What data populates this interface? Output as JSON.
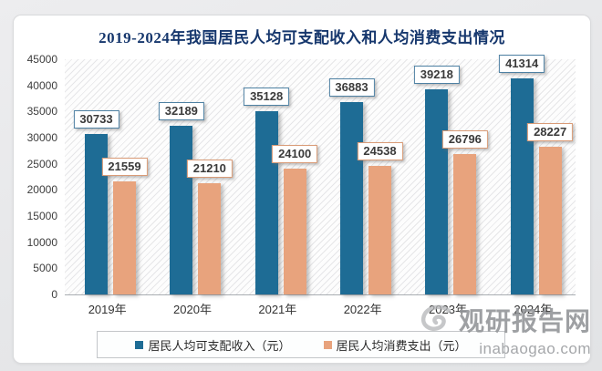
{
  "title": "2019-2024年我国居民人均可支配收入和人均消费支出情况",
  "chart_data": {
    "type": "bar",
    "title": "2019-2024年我国居民人均可支配收入和人均消费支出情况",
    "categories": [
      "2019年",
      "2020年",
      "2021年",
      "2022年",
      "2023年",
      "2024年"
    ],
    "series": [
      {
        "name": "居民人均可支配收入（元）",
        "color": "#1e6c95",
        "label_border": "#4e81a3",
        "values": [
          30733,
          32189,
          35128,
          36883,
          39218,
          41314
        ]
      },
      {
        "name": "居民人均消费支出（元）",
        "color": "#e8a37d",
        "label_border": "#d99b77",
        "values": [
          21559,
          21210,
          24100,
          24538,
          26796,
          28227
        ]
      }
    ],
    "xlabel": "",
    "ylabel": "",
    "ylim": [
      0,
      45000
    ],
    "ytick_step": 5000,
    "ytick_labels": [
      "0",
      "5000",
      "10000",
      "15000",
      "20000",
      "25000",
      "30000",
      "35000",
      "40000",
      "45000"
    ],
    "grid": false,
    "legend_position": "bottom",
    "plot_background": "diagonal-hatch"
  },
  "watermark": {
    "brand": "观研报告网",
    "domain": "inabaogao.com"
  },
  "colors": {
    "title": "#16376d",
    "income_bar": "#1e6c95",
    "expense_bar": "#e8a37d",
    "card_background": "#ffffff",
    "page_background": "#e7e8ea"
  }
}
